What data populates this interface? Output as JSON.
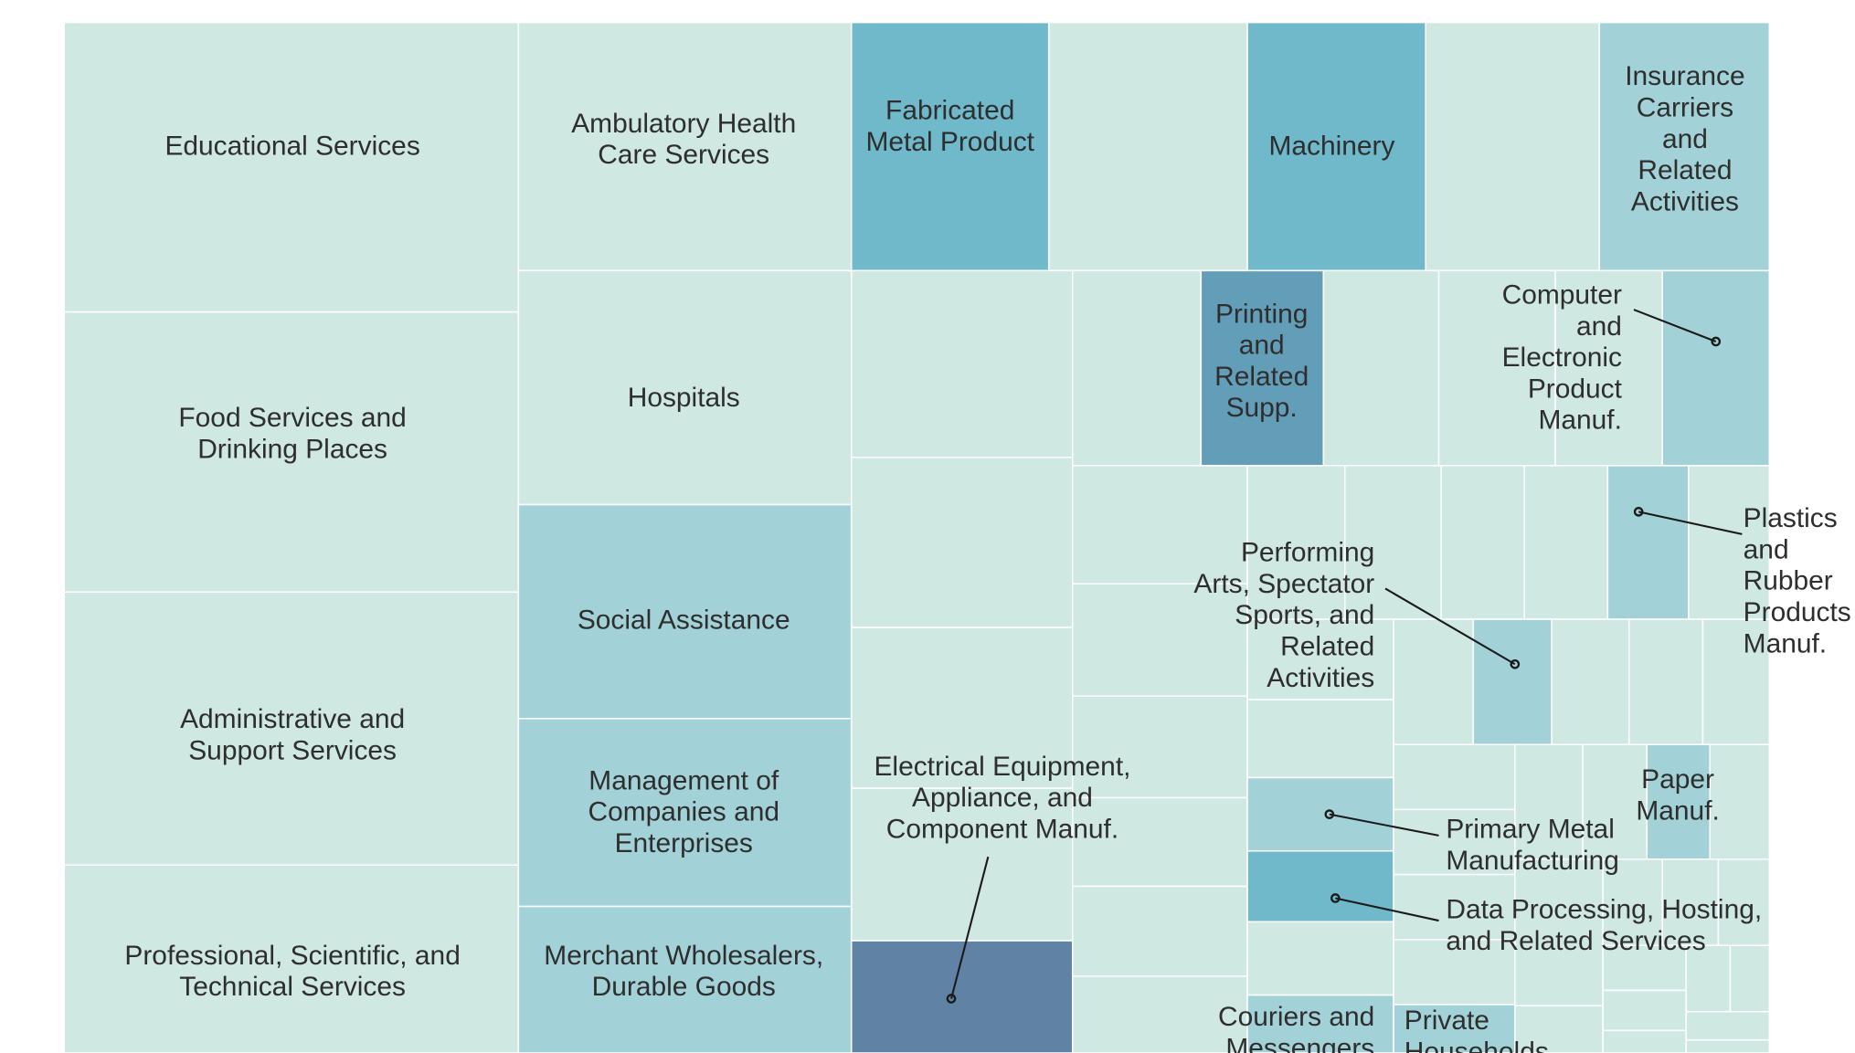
{
  "chart_data": {
    "type": "treemap",
    "title": "",
    "colors": {
      "light": "#cfe8e2",
      "medium": "#a2d2d7",
      "teal": "#6fb9ca",
      "steel": "#639eb8",
      "dark": "#5f82a5"
    },
    "labels": [
      {
        "name": "Educational Services",
        "lines": [
          "Educational Services"
        ]
      },
      {
        "name": "Food Services and Drinking Places",
        "lines": [
          "Food Services and",
          "Drinking Places"
        ]
      },
      {
        "name": "Administrative and Support Services",
        "lines": [
          "Administrative and",
          "Support Services"
        ]
      },
      {
        "name": "Professional, Scientific, and Technical Services",
        "lines": [
          "Professional, Scientific, and",
          "Technical Services"
        ]
      },
      {
        "name": "Ambulatory Health Care Services",
        "lines": [
          "Ambulatory Health",
          "Care Services"
        ]
      },
      {
        "name": "Hospitals",
        "lines": [
          "Hospitals"
        ]
      },
      {
        "name": "Social Assistance",
        "lines": [
          "Social Assistance"
        ]
      },
      {
        "name": "Management of Companies and Enterprises",
        "lines": [
          "Management of",
          "Companies and",
          "Enterprises"
        ]
      },
      {
        "name": "Merchant Wholesalers, Durable Goods",
        "lines": [
          "Merchant Wholesalers,",
          "Durable Goods"
        ]
      },
      {
        "name": "Fabricated Metal Product",
        "lines": [
          "Fabricated",
          "Metal Product"
        ]
      },
      {
        "name": "Machinery",
        "lines": [
          "Machinery"
        ]
      },
      {
        "name": "Insurance Carriers and Related Activities",
        "lines": [
          "Insurance",
          "Carriers",
          "and",
          "Related",
          "Activities"
        ]
      },
      {
        "name": "Printing and Related Supp.",
        "lines": [
          "Printing",
          "and",
          "Related",
          "Supp."
        ]
      },
      {
        "name": "Computer and Electronic Product Manuf.",
        "lines": [
          "Computer",
          "and",
          "Electronic",
          "Product",
          "Manuf."
        ]
      },
      {
        "name": "Plastics and Rubber Products Manuf.",
        "lines": [
          "Plastics",
          "and",
          "Rubber",
          "Products",
          "Manuf."
        ]
      },
      {
        "name": "Performing Arts, Spectator Sports, and Related Activities",
        "lines": [
          "Performing",
          "Arts, Spectator",
          "Sports, and",
          "Related",
          "Activities"
        ]
      },
      {
        "name": "Electrical Equipment, Appliance, and Component Manuf.",
        "lines": [
          "Electrical Equipment,",
          "Appliance, and",
          "Component Manuf."
        ]
      },
      {
        "name": "Primary Metal Manufacturing",
        "lines": [
          "Primary Metal",
          "Manufacturing"
        ]
      },
      {
        "name": "Paper Manuf.",
        "lines": [
          "Paper",
          "Manuf."
        ]
      },
      {
        "name": "Data Processing, Hosting, and Related Services",
        "lines": [
          "Data Processing, Hosting,",
          "and Related Services"
        ]
      },
      {
        "name": "Couriers and Messengers",
        "lines": [
          "Couriers and",
          "Messengers"
        ]
      },
      {
        "name": "Private Households",
        "lines": [
          "Private",
          "Households"
        ]
      }
    ]
  }
}
